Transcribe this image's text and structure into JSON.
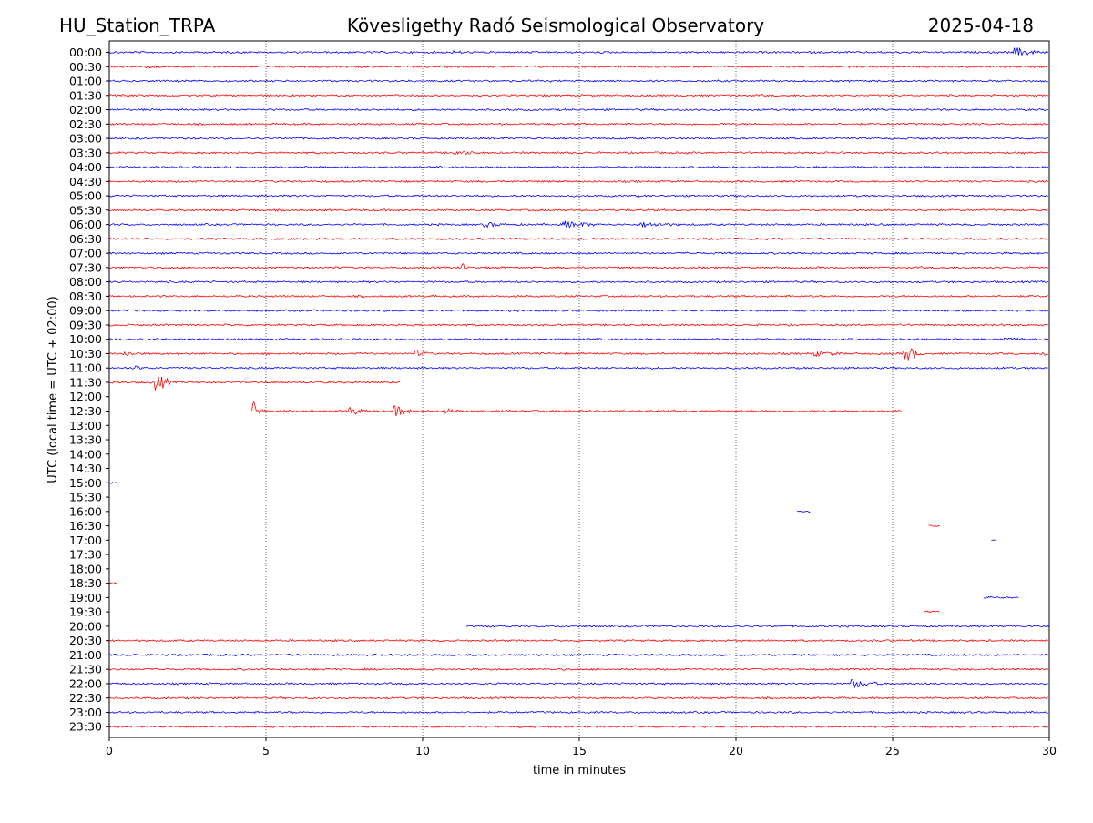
{
  "header": {
    "station": "HU_Station_TRPA",
    "observatory": "Kövesligethy Radó Seismological Observatory",
    "date": "2025-04-18"
  },
  "chart_data": {
    "type": "line",
    "title": "Kövesligethy Radó Seismological Observatory",
    "xlabel": "time in minutes",
    "ylabel": "UTC (local time = UTC + 02:00)",
    "xlim": [
      0,
      30
    ],
    "xticks": [
      0,
      5,
      10,
      15,
      20,
      25,
      30
    ],
    "vertical_gridlines": [
      5,
      10,
      15,
      20,
      25
    ],
    "grid": "vertical dotted",
    "colors": {
      "even_rows": "#0000ff",
      "odd_rows": "#ff0000"
    },
    "rows": [
      {
        "label": "00:00",
        "color": "#0000ff",
        "segments": [
          [
            0,
            30
          ]
        ],
        "events": [
          {
            "t": 28.9,
            "amp": 5,
            "dur": 1.2
          },
          {
            "t": 11,
            "amp": 2,
            "dur": 1
          }
        ]
      },
      {
        "label": "00:30",
        "color": "#ff0000",
        "segments": [
          [
            0,
            30
          ]
        ],
        "events": [
          {
            "t": 1,
            "amp": 2,
            "dur": 1.5
          }
        ]
      },
      {
        "label": "01:00",
        "color": "#0000ff",
        "segments": [
          [
            0,
            30
          ]
        ],
        "events": []
      },
      {
        "label": "01:30",
        "color": "#ff0000",
        "segments": [
          [
            0,
            30
          ]
        ],
        "events": []
      },
      {
        "label": "02:00",
        "color": "#0000ff",
        "segments": [
          [
            0,
            30
          ]
        ],
        "events": []
      },
      {
        "label": "02:30",
        "color": "#ff0000",
        "segments": [
          [
            0,
            30
          ]
        ],
        "events": []
      },
      {
        "label": "03:00",
        "color": "#0000ff",
        "segments": [
          [
            0,
            30
          ]
        ],
        "events": []
      },
      {
        "label": "03:30",
        "color": "#ff0000",
        "segments": [
          [
            0,
            30
          ]
        ],
        "events": [
          {
            "t": 11,
            "amp": 3,
            "dur": 1.2
          }
        ]
      },
      {
        "label": "04:00",
        "color": "#0000ff",
        "segments": [
          [
            0,
            30
          ]
        ],
        "events": []
      },
      {
        "label": "04:30",
        "color": "#ff0000",
        "segments": [
          [
            0,
            30
          ]
        ],
        "events": []
      },
      {
        "label": "05:00",
        "color": "#0000ff",
        "segments": [
          [
            0,
            30
          ]
        ],
        "events": []
      },
      {
        "label": "05:30",
        "color": "#ff0000",
        "segments": [
          [
            0,
            30
          ]
        ],
        "events": []
      },
      {
        "label": "06:00",
        "color": "#0000ff",
        "segments": [
          [
            0,
            30
          ]
        ],
        "events": [
          {
            "t": 12,
            "amp": 3,
            "dur": 1
          },
          {
            "t": 14.5,
            "amp": 4,
            "dur": 1.5
          },
          {
            "t": 17,
            "amp": 3,
            "dur": 2
          }
        ]
      },
      {
        "label": "06:30",
        "color": "#ff0000",
        "segments": [
          [
            0,
            30
          ]
        ],
        "events": []
      },
      {
        "label": "07:00",
        "color": "#0000ff",
        "segments": [
          [
            0,
            30
          ]
        ],
        "events": []
      },
      {
        "label": "07:30",
        "color": "#ff0000",
        "segments": [
          [
            0,
            30
          ]
        ],
        "events": [
          {
            "t": 11.3,
            "amp": 5,
            "dur": 0.2
          }
        ]
      },
      {
        "label": "08:00",
        "color": "#0000ff",
        "segments": [
          [
            0,
            30
          ]
        ],
        "events": []
      },
      {
        "label": "08:30",
        "color": "#ff0000",
        "segments": [
          [
            0,
            30
          ]
        ],
        "events": []
      },
      {
        "label": "09:00",
        "color": "#0000ff",
        "segments": [
          [
            0,
            30
          ]
        ],
        "events": []
      },
      {
        "label": "09:30",
        "color": "#ff0000",
        "segments": [
          [
            0,
            30
          ]
        ],
        "events": []
      },
      {
        "label": "10:00",
        "color": "#0000ff",
        "segments": [
          [
            0,
            30
          ]
        ],
        "events": [
          {
            "t": 28.5,
            "amp": 2,
            "dur": 1.5
          }
        ]
      },
      {
        "label": "10:30",
        "color": "#ff0000",
        "segments": [
          [
            0,
            30
          ]
        ],
        "events": [
          {
            "t": 0.5,
            "amp": 3,
            "dur": 1
          },
          {
            "t": 9.8,
            "amp": 4,
            "dur": 0.6
          },
          {
            "t": 22.5,
            "amp": 3,
            "dur": 1.5
          },
          {
            "t": 25.4,
            "amp": 9,
            "dur": 0.6
          },
          {
            "t": 29.8,
            "amp": 3,
            "dur": 0.4
          }
        ]
      },
      {
        "label": "11:00",
        "color": "#0000ff",
        "segments": [
          [
            0,
            30
          ]
        ],
        "events": [
          {
            "t": 0.8,
            "amp": 3,
            "dur": 0.4
          }
        ]
      },
      {
        "label": "11:30",
        "color": "#ff0000",
        "segments": [
          [
            0,
            9.3
          ]
        ],
        "events": [
          {
            "t": 1.5,
            "amp": 10,
            "dur": 0.6
          }
        ]
      },
      {
        "label": "12:00",
        "color": "#0000ff",
        "segments": [],
        "events": []
      },
      {
        "label": "12:30",
        "color": "#ff0000",
        "segments": [
          [
            4.55,
            25.3
          ]
        ],
        "events": [
          {
            "t": 4.6,
            "amp": 10,
            "dur": 0.4
          },
          {
            "t": 7.7,
            "amp": 5,
            "dur": 0.6
          },
          {
            "t": 9.1,
            "amp": 6,
            "dur": 0.8
          },
          {
            "t": 10.6,
            "amp": 3,
            "dur": 1
          }
        ]
      },
      {
        "label": "13:00",
        "color": "#0000ff",
        "segments": [],
        "events": []
      },
      {
        "label": "13:30",
        "color": "#ff0000",
        "segments": [],
        "events": []
      },
      {
        "label": "14:00",
        "color": "#0000ff",
        "segments": [],
        "events": []
      },
      {
        "label": "14:30",
        "color": "#ff0000",
        "segments": [],
        "events": []
      },
      {
        "label": "15:00",
        "color": "#0000ff",
        "segments": [
          [
            0,
            0.35
          ]
        ],
        "events": []
      },
      {
        "label": "15:30",
        "color": "#ff0000",
        "segments": [],
        "events": []
      },
      {
        "label": "16:00",
        "color": "#0000ff",
        "segments": [
          [
            21.95,
            22.4
          ]
        ],
        "events": []
      },
      {
        "label": "16:30",
        "color": "#ff0000",
        "segments": [
          [
            26.15,
            26.5
          ]
        ],
        "events": []
      },
      {
        "label": "17:00",
        "color": "#0000ff",
        "segments": [
          [
            28.15,
            28.3
          ]
        ],
        "events": []
      },
      {
        "label": "17:30",
        "color": "#ff0000",
        "segments": [],
        "events": []
      },
      {
        "label": "18:00",
        "color": "#0000ff",
        "segments": [],
        "events": []
      },
      {
        "label": "18:30",
        "color": "#ff0000",
        "segments": [
          [
            0,
            0.25
          ]
        ],
        "events": []
      },
      {
        "label": "19:00",
        "color": "#0000ff",
        "segments": [
          [
            27.9,
            29.05
          ]
        ],
        "events": []
      },
      {
        "label": "19:30",
        "color": "#ff0000",
        "segments": [
          [
            26.0,
            26.5
          ]
        ],
        "events": []
      },
      {
        "label": "20:00",
        "color": "#0000ff",
        "segments": [
          [
            11.4,
            30
          ]
        ],
        "events": []
      },
      {
        "label": "20:30",
        "color": "#ff0000",
        "segments": [
          [
            0,
            30
          ]
        ],
        "events": []
      },
      {
        "label": "21:00",
        "color": "#0000ff",
        "segments": [
          [
            0,
            30
          ]
        ],
        "events": []
      },
      {
        "label": "21:30",
        "color": "#ff0000",
        "segments": [
          [
            0,
            30
          ]
        ],
        "events": []
      },
      {
        "label": "22:00",
        "color": "#0000ff",
        "segments": [
          [
            0,
            30
          ]
        ],
        "events": [
          {
            "t": 23.7,
            "amp": 5,
            "dur": 1.2
          }
        ]
      },
      {
        "label": "22:30",
        "color": "#ff0000",
        "segments": [
          [
            0,
            30
          ]
        ],
        "events": []
      },
      {
        "label": "23:00",
        "color": "#0000ff",
        "segments": [
          [
            0,
            30
          ]
        ],
        "events": []
      },
      {
        "label": "23:30",
        "color": "#ff0000",
        "segments": [
          [
            0,
            30
          ]
        ],
        "events": []
      }
    ]
  }
}
